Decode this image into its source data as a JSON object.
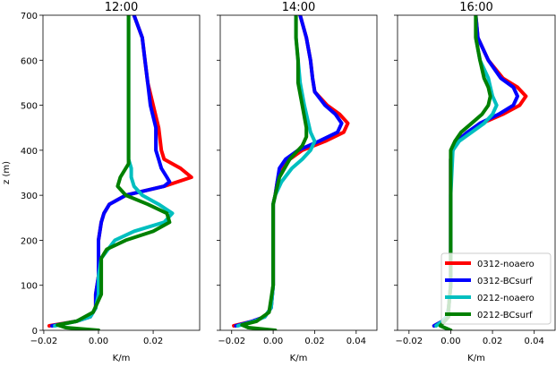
{
  "chart_data": [
    {
      "type": "line",
      "title": "12:00",
      "xlabel": "K/m",
      "ylabel": "z (m)",
      "xlim": [
        -0.0203,
        0.037
      ],
      "ylim": [
        0,
        700
      ],
      "xticks": [
        -0.02,
        0.0,
        0.02
      ],
      "xtick_labels": [
        "−0.02",
        "0.00",
        "0.02"
      ],
      "yticks": [
        0,
        100,
        200,
        300,
        400,
        500,
        600,
        700
      ],
      "ytick_labels": [
        "0",
        "100",
        "200",
        "300",
        "400",
        "500",
        "600",
        "700"
      ],
      "series": [
        {
          "name": "0312-noaero",
          "color": "#ff0000",
          "z": [
            10,
            20,
            30,
            50,
            80,
            120,
            160,
            200,
            240,
            260,
            280,
            300,
            320,
            340,
            360,
            380,
            400,
            450,
            500,
            550,
            600,
            650,
            700
          ],
          "x": [
            -0.018,
            -0.008,
            -0.003,
            -0.001,
            -0.001,
            0.0,
            0.0,
            0.0,
            0.001,
            0.002,
            0.004,
            0.01,
            0.024,
            0.034,
            0.03,
            0.024,
            0.023,
            0.022,
            0.02,
            0.018,
            0.017,
            0.016,
            0.013
          ]
        },
        {
          "name": "0312-BCsurf",
          "color": "#0000ff",
          "z": [
            10,
            20,
            30,
            50,
            80,
            120,
            160,
            200,
            240,
            260,
            280,
            300,
            320,
            330,
            340,
            360,
            380,
            400,
            450,
            500,
            550,
            600,
            650,
            700
          ],
          "x": [
            -0.017,
            -0.008,
            -0.003,
            -0.001,
            -0.001,
            0.0,
            0.0,
            0.0,
            0.001,
            0.002,
            0.004,
            0.01,
            0.024,
            0.026,
            0.025,
            0.023,
            0.022,
            0.021,
            0.021,
            0.019,
            0.018,
            0.017,
            0.016,
            0.013
          ]
        },
        {
          "name": "0212-noaero",
          "color": "#00bfbf",
          "z": [
            10,
            20,
            30,
            50,
            80,
            120,
            160,
            200,
            220,
            240,
            260,
            280,
            300,
            320,
            340,
            360,
            380,
            400,
            450,
            500,
            550,
            600,
            650,
            700
          ],
          "x": [
            -0.016,
            -0.008,
            -0.003,
            -0.001,
            0.0,
            0.0,
            0.001,
            0.006,
            0.013,
            0.024,
            0.027,
            0.022,
            0.016,
            0.013,
            0.012,
            0.012,
            0.011,
            0.011,
            0.011,
            0.011,
            0.011,
            0.011,
            0.011,
            0.011
          ]
        },
        {
          "name": "0212-BCsurf",
          "color": "#008000",
          "z": [
            0,
            6,
            12,
            20,
            40,
            80,
            120,
            160,
            180,
            200,
            220,
            240,
            260,
            280,
            300,
            320,
            340,
            370,
            400,
            450,
            500,
            550,
            600,
            650,
            700
          ],
          "x": [
            0.0,
            -0.012,
            -0.015,
            -0.008,
            -0.002,
            0.001,
            0.001,
            0.001,
            0.003,
            0.01,
            0.02,
            0.026,
            0.025,
            0.018,
            0.01,
            0.007,
            0.008,
            0.011,
            0.011,
            0.011,
            0.011,
            0.011,
            0.011,
            0.011,
            0.011
          ]
        }
      ]
    },
    {
      "type": "line",
      "title": "14:00",
      "xlabel": "K/m",
      "xlim": [
        -0.0255,
        0.05
      ],
      "ylim": [
        0,
        700
      ],
      "xticks": [
        -0.02,
        0.0,
        0.02,
        0.04
      ],
      "xtick_labels": [
        "−0.02",
        "0.00",
        "0.02",
        "0.04"
      ],
      "yticks": [
        0,
        100,
        200,
        300,
        400,
        500,
        600,
        700
      ],
      "series": [
        {
          "name": "0312-noaero",
          "color": "#ff0000",
          "z": [
            10,
            20,
            30,
            50,
            100,
            200,
            280,
            300,
            330,
            360,
            380,
            400,
            420,
            440,
            460,
            480,
            500,
            530,
            560,
            600,
            650,
            700
          ],
          "x": [
            -0.019,
            -0.01,
            -0.004,
            -0.001,
            0.0,
            0.0,
            0.0,
            0.001,
            0.002,
            0.004,
            0.008,
            0.014,
            0.025,
            0.034,
            0.036,
            0.032,
            0.026,
            0.02,
            0.019,
            0.018,
            0.016,
            0.013
          ]
        },
        {
          "name": "0312-BCsurf",
          "color": "#0000ff",
          "z": [
            10,
            20,
            30,
            50,
            100,
            200,
            280,
            300,
            330,
            360,
            380,
            400,
            420,
            440,
            460,
            480,
            500,
            530,
            560,
            600,
            650,
            700
          ],
          "x": [
            -0.018,
            -0.01,
            -0.004,
            -0.001,
            0.0,
            0.0,
            0.0,
            0.001,
            0.002,
            0.003,
            0.006,
            0.012,
            0.022,
            0.031,
            0.033,
            0.03,
            0.025,
            0.02,
            0.019,
            0.018,
            0.016,
            0.013
          ]
        },
        {
          "name": "0212-noaero",
          "color": "#00bfbf",
          "z": [
            10,
            20,
            30,
            50,
            100,
            200,
            280,
            300,
            330,
            360,
            380,
            400,
            420,
            440,
            460,
            500,
            550,
            600,
            650,
            700
          ],
          "x": [
            -0.017,
            -0.009,
            -0.004,
            -0.001,
            0.0,
            0.0,
            0.0,
            0.001,
            0.004,
            0.009,
            0.014,
            0.018,
            0.02,
            0.018,
            0.017,
            0.015,
            0.013,
            0.012,
            0.011,
            0.011
          ]
        },
        {
          "name": "0212-BCsurf",
          "color": "#008000",
          "z": [
            0,
            6,
            12,
            20,
            40,
            100,
            200,
            280,
            300,
            340,
            380,
            410,
            430,
            450,
            500,
            550,
            600,
            650,
            700
          ],
          "x": [
            0.001,
            -0.012,
            -0.015,
            -0.008,
            -0.002,
            0.0,
            0.0,
            0.0,
            0.001,
            0.003,
            0.008,
            0.014,
            0.016,
            0.016,
            0.014,
            0.012,
            0.012,
            0.011,
            0.011
          ]
        }
      ]
    },
    {
      "type": "line",
      "title": "16:00",
      "xlabel": "K/m",
      "xlim": [
        -0.0255,
        0.05
      ],
      "ylim": [
        0,
        700
      ],
      "xticks": [
        -0.02,
        0.0,
        0.02,
        0.04
      ],
      "xtick_labels": [
        "−0.02",
        "0.00",
        "0.02",
        "0.04"
      ],
      "yticks": [
        0,
        100,
        200,
        300,
        400,
        500,
        600,
        700
      ],
      "legend_position": "lower-right",
      "series": [
        {
          "name": "0312-noaero",
          "color": "#ff0000",
          "z": [
            10,
            20,
            30,
            50,
            100,
            300,
            380,
            400,
            420,
            440,
            460,
            480,
            500,
            520,
            540,
            560,
            600,
            650,
            700
          ],
          "x": [
            -0.008,
            -0.004,
            -0.002,
            -0.001,
            0.0,
            0.0,
            0.0,
            0.001,
            0.003,
            0.008,
            0.015,
            0.025,
            0.033,
            0.036,
            0.032,
            0.025,
            0.018,
            0.013,
            0.012
          ]
        },
        {
          "name": "0312-BCsurf",
          "color": "#0000ff",
          "z": [
            10,
            20,
            30,
            50,
            100,
            300,
            380,
            400,
            420,
            440,
            460,
            480,
            500,
            520,
            540,
            560,
            600,
            650,
            700
          ],
          "x": [
            -0.008,
            -0.004,
            -0.002,
            -0.001,
            0.0,
            0.0,
            0.0,
            0.001,
            0.003,
            0.008,
            0.014,
            0.023,
            0.03,
            0.032,
            0.03,
            0.024,
            0.018,
            0.013,
            0.012
          ]
        },
        {
          "name": "0212-noaero",
          "color": "#00bfbf",
          "z": [
            10,
            20,
            30,
            50,
            100,
            300,
            400,
            420,
            440,
            460,
            480,
            500,
            520,
            540,
            560,
            600,
            650,
            700
          ],
          "x": [
            -0.007,
            -0.004,
            -0.002,
            -0.001,
            0.0,
            0.0,
            0.001,
            0.004,
            0.01,
            0.016,
            0.02,
            0.022,
            0.02,
            0.019,
            0.018,
            0.014,
            0.012,
            0.012
          ]
        },
        {
          "name": "0212-BCsurf",
          "color": "#008000",
          "z": [
            0,
            10,
            20,
            30,
            50,
            100,
            300,
            400,
            420,
            440,
            460,
            480,
            500,
            520,
            540,
            560,
            600,
            650,
            700
          ],
          "x": [
            0.0,
            -0.005,
            -0.003,
            -0.001,
            -0.001,
            0.0,
            0.0,
            0.0,
            0.002,
            0.005,
            0.01,
            0.015,
            0.018,
            0.019,
            0.018,
            0.016,
            0.014,
            0.012,
            0.012
          ]
        }
      ]
    }
  ]
}
